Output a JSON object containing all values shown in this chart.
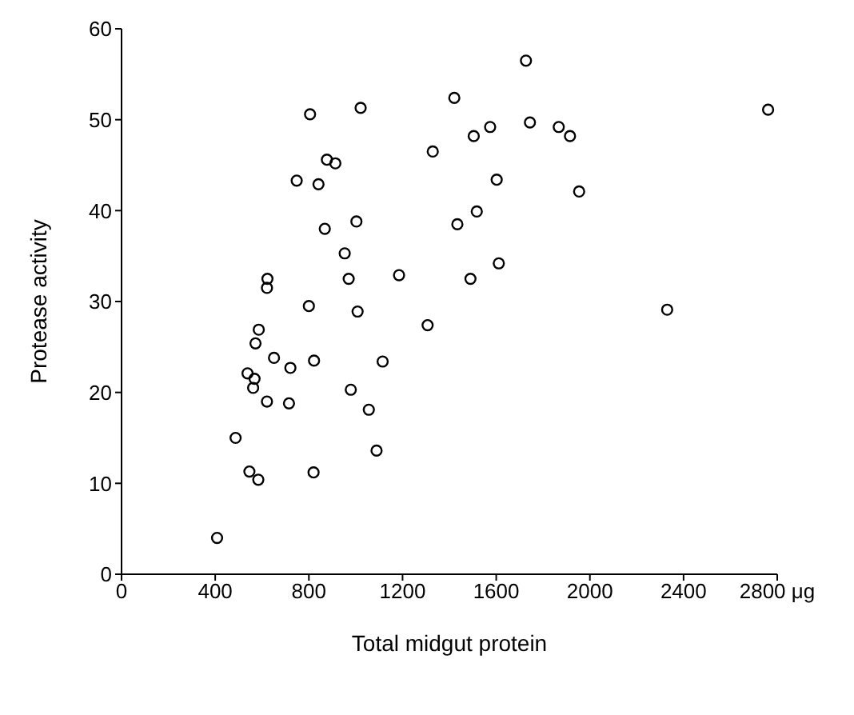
{
  "chart_data": {
    "type": "scatter",
    "xlabel": "Total midgut protein",
    "ylabel": "Protease activity",
    "xlim": [
      0,
      2800
    ],
    "ylim": [
      0,
      60
    ],
    "xticks": [
      0,
      400,
      800,
      1200,
      1600,
      2000,
      2400,
      {
        "value": 2800,
        "label": "2800 μg"
      }
    ],
    "yticks": [
      0,
      10,
      20,
      30,
      40,
      50,
      60
    ],
    "marker": "circle",
    "series": [
      {
        "color": "#000000",
        "x": [
          408,
          487,
          546,
          584,
          820,
          1089,
          1056,
          979,
          715,
          621,
          562,
          568,
          538,
          721,
          651,
          822,
          1115,
          572,
          586,
          800,
          1008,
          1307,
          623,
          621,
          970,
          1185,
          1490,
          953,
          868,
          1003,
          1434,
          1517,
          748,
          841,
          877,
          913,
          1329,
          1504,
          805,
          1021,
          1421,
          1727,
          1574,
          1744,
          1867,
          1915,
          2761,
          1602,
          1954,
          1611,
          2330
        ],
        "values": [
          4.0,
          15.0,
          11.3,
          10.4,
          11.2,
          13.6,
          18.1,
          20.3,
          18.8,
          19.0,
          20.5,
          21.5,
          22.1,
          22.7,
          23.8,
          23.5,
          23.4,
          25.4,
          26.9,
          29.5,
          28.9,
          27.4,
          32.5,
          31.5,
          32.5,
          32.9,
          32.5,
          35.3,
          38.0,
          38.8,
          38.5,
          39.9,
          43.3,
          42.9,
          45.6,
          45.2,
          46.5,
          48.2,
          50.6,
          51.3,
          52.4,
          56.5,
          49.2,
          49.7,
          49.2,
          48.2,
          51.1,
          43.4,
          42.1,
          34.2,
          29.1
        ]
      }
    ]
  }
}
